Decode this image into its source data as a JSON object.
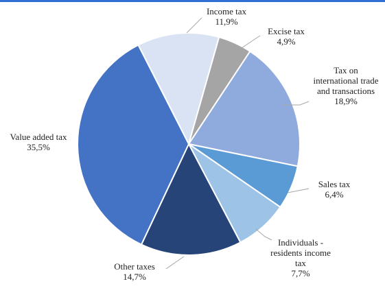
{
  "chart_data": {
    "type": "pie",
    "slices": [
      {
        "name": "Income tax",
        "value": 11.9,
        "value_label": "11,9%",
        "color": "#dae3f3"
      },
      {
        "name": "Excise tax",
        "value": 4.9,
        "value_label": "4,9%",
        "color": "#a5a5a5"
      },
      {
        "name": "Tax on international trade and transactions",
        "value": 18.9,
        "value_label": "18,9%",
        "color": "#8faadc"
      },
      {
        "name": "Sales tax",
        "value": 6.4,
        "value_label": "6,4%",
        "color": "#5b9bd5"
      },
      {
        "name": "Individuals - residents income tax",
        "value": 7.7,
        "value_label": "7,7%",
        "color": "#9dc3e6"
      },
      {
        "name": "Other taxes",
        "value": 14.7,
        "value_label": "14,7%",
        "color": "#264478"
      },
      {
        "name": "Value added tax",
        "value": 35.5,
        "value_label": "35,5%",
        "color": "#4472c4"
      }
    ],
    "start_angle_deg": 333,
    "direction": "clockwise",
    "legend": "none",
    "accent_rule_color": "#2f6fd6"
  }
}
